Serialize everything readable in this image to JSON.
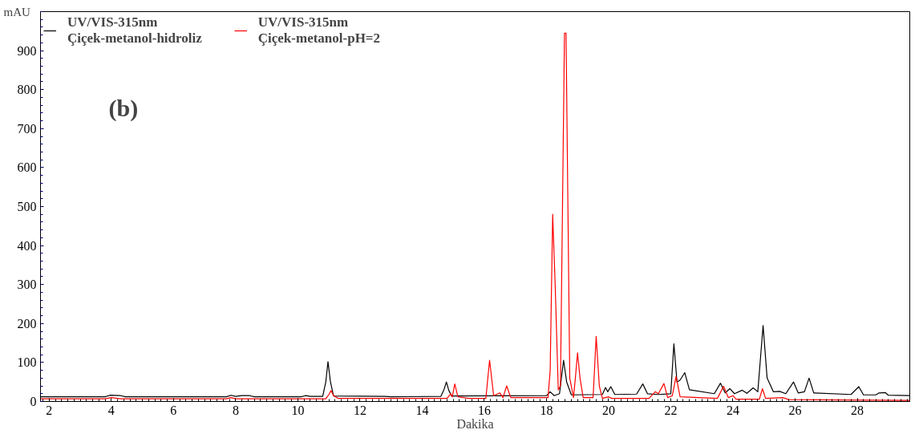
{
  "chart_data": {
    "type": "line",
    "xlabel": "Dakika",
    "ylabel": "mAU",
    "annotations": [
      "(b)"
    ],
    "xlim": [
      1.72,
      29.69
    ],
    "ylim": [
      0,
      1000
    ],
    "xticks": [
      2,
      4,
      6,
      8,
      10,
      12,
      14,
      16,
      18,
      20,
      22,
      24,
      26,
      28
    ],
    "yticks": [
      0,
      100,
      200,
      300,
      400,
      500,
      600,
      700,
      800,
      900
    ],
    "grid": false,
    "legend": "top left",
    "marker": "none",
    "line_style": "solid",
    "series": [
      {
        "name": "UV/VIS-315nm\nÇiçek-metanol-hidroliz",
        "color": "#000000",
        "x": [
          1.72,
          3.8,
          3.95,
          4.3,
          4.45,
          7.7,
          7.85,
          8.0,
          8.2,
          8.45,
          8.6,
          10.1,
          10.25,
          10.4,
          10.8,
          10.9,
          10.97,
          11.05,
          11.15,
          12.8,
          13.0,
          14.6,
          14.7,
          14.78,
          14.86,
          14.95,
          18.0,
          18.12,
          18.25,
          18.42,
          18.55,
          18.65,
          18.8,
          19.8,
          19.9,
          19.97,
          20.07,
          20.2,
          20.9,
          21.1,
          21.25,
          21.6,
          22.0,
          22.1,
          22.2,
          22.3,
          22.45,
          22.6,
          23.4,
          23.6,
          23.75,
          23.9,
          24.05,
          24.3,
          24.45,
          24.65,
          24.8,
          24.97,
          25.1,
          25.3,
          25.5,
          25.7,
          25.95,
          26.1,
          26.3,
          26.45,
          26.6,
          27.8,
          28.05,
          28.2,
          28.6,
          28.7,
          28.9,
          29.0,
          29.69
        ],
        "values": [
          12,
          12,
          16,
          15,
          12,
          12,
          16,
          13,
          15,
          15,
          12,
          12,
          15,
          13,
          13,
          50,
          102,
          50,
          14,
          13,
          12,
          13,
          30,
          50,
          28,
          14,
          15,
          25,
          15,
          20,
          106,
          50,
          17,
          18,
          36,
          25,
          38,
          18,
          19,
          45,
          20,
          18,
          20,
          148,
          50,
          55,
          74,
          30,
          20,
          47,
          22,
          33,
          20,
          29,
          21,
          35,
          25,
          195,
          60,
          25,
          26,
          20,
          50,
          22,
          25,
          60,
          22,
          18,
          38,
          17,
          17,
          22,
          23,
          16,
          15
        ]
      },
      {
        "name": "UV/VIS-315nm\nÇiçek-metanol-pH=2",
        "color": "#ff0000",
        "x": [
          1.72,
          3.8,
          4.0,
          4.3,
          7.7,
          7.85,
          8.0,
          10.9,
          11.0,
          11.07,
          11.15,
          11.3,
          14.8,
          14.92,
          14.97,
          15.05,
          15.15,
          15.5,
          16.05,
          16.17,
          16.3,
          16.5,
          16.6,
          16.72,
          16.85,
          18.05,
          18.12,
          18.2,
          18.28,
          18.38,
          18.45,
          18.58,
          18.63,
          18.75,
          18.87,
          18.93,
          19.0,
          19.08,
          19.18,
          19.5,
          19.6,
          19.7,
          19.8,
          20.0,
          20.1,
          21.3,
          21.5,
          21.6,
          21.78,
          21.9,
          22.05,
          22.17,
          22.3,
          23.5,
          23.7,
          23.85,
          24.0,
          24.1,
          24.85,
          24.95,
          25.05,
          25.6,
          25.8,
          29.69
        ],
        "values": [
          7,
          7,
          10,
          7,
          7,
          10,
          7,
          7,
          18,
          28,
          15,
          8,
          8,
          20,
          12,
          45,
          12,
          8,
          8,
          106,
          15,
          22,
          10,
          40,
          10,
          10,
          80,
          480,
          300,
          30,
          40,
          945,
          945,
          60,
          10,
          60,
          125,
          60,
          10,
          10,
          167,
          40,
          8,
          12,
          8,
          8,
          25,
          20,
          46,
          10,
          15,
          64,
          12,
          8,
          39,
          10,
          15,
          6,
          6,
          33,
          8,
          10,
          5,
          3
        ]
      }
    ]
  }
}
